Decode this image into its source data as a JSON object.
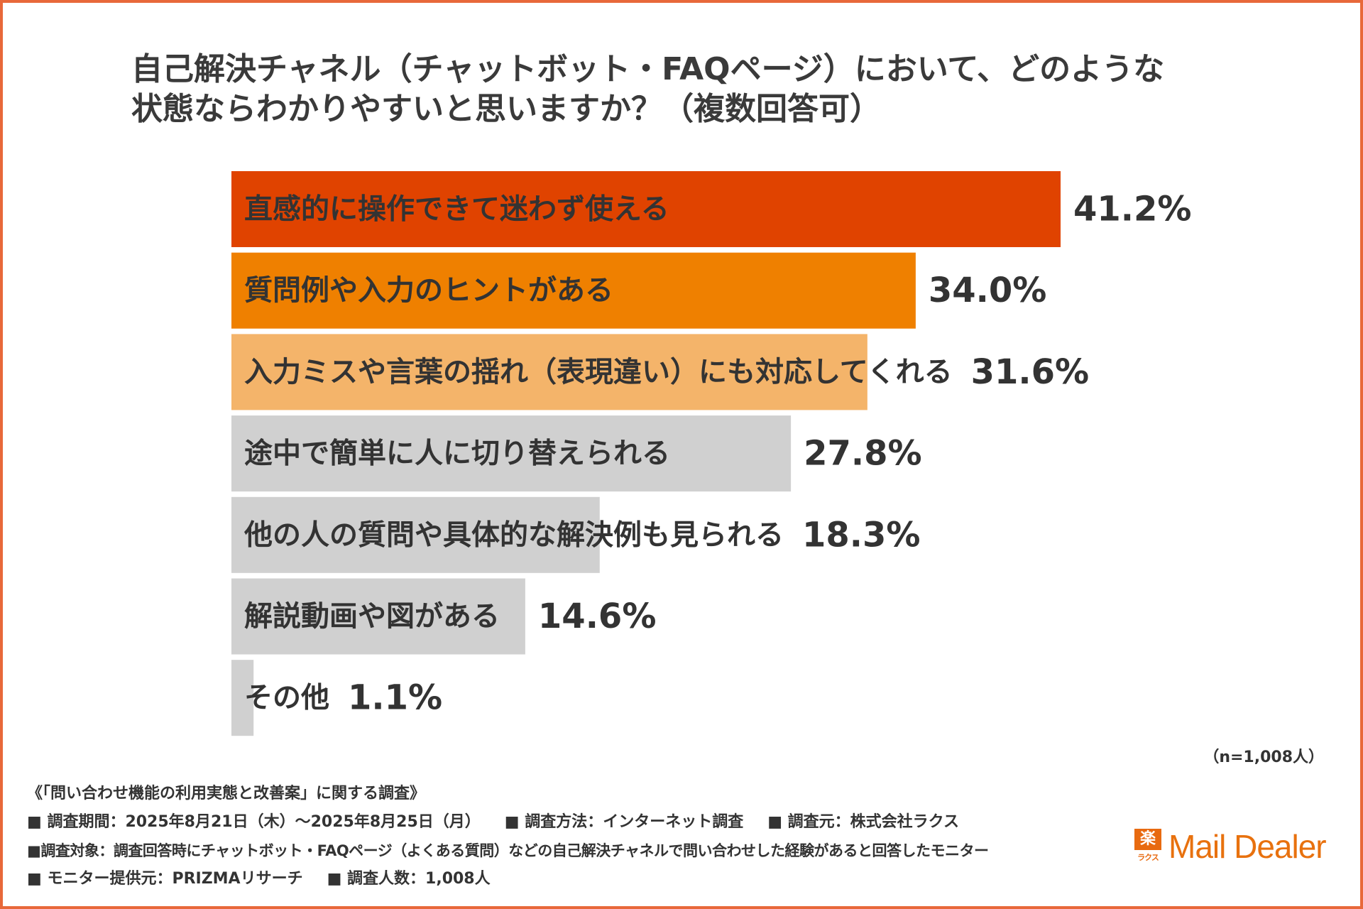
{
  "title": {
    "line1": "自己解決チャネル（チャットボット・FAQページ）において、どのような",
    "line2": "状態ならわかりやすいと思いますか？（複数回答可）"
  },
  "colors": {
    "border": "#e8683a",
    "bar_1": "#e04300",
    "bar_2": "#ef8000",
    "bar_3": "#f4b46a",
    "bar_gray": "#d0d0d0"
  },
  "chart_data": {
    "type": "bar",
    "orientation": "horizontal",
    "title": "自己解決チャネル（チャットボット・FAQページ）において、どのような状態ならわかりやすいと思いますか？（複数回答可）",
    "categories": [
      "直感的に操作できて迷わず使える",
      "質問例や入力のヒントがある",
      "入力ミスや言葉の揺れ（表現違い）にも対応してくれる",
      "途中で簡単に人に切り替えられる",
      "他の人の質問や具体的な解決例も見られる",
      "解説動画や図がある",
      "その他"
    ],
    "values": [
      41.2,
      34.0,
      31.6,
      27.8,
      18.3,
      14.6,
      1.1
    ],
    "value_labels": [
      "41.2%",
      "34.0%",
      "31.6%",
      "27.8%",
      "18.3%",
      "14.6%",
      "1.1%"
    ],
    "unit": "%",
    "xlim": [
      0,
      41.2
    ],
    "grid": false,
    "legend": "none"
  },
  "n_note": "（n=1,008人）",
  "footer": {
    "survey_name": "《「問い合わせ機能の利用実態と改善案」に関する調査》",
    "period": "■ 調査期間：2025年8月21日（木）〜2025年8月25日（月）",
    "method": "■ 調査方法：インターネット調査",
    "organizer": "■ 調査元：株式会社ラクス",
    "target": "■調査対象：調査回答時にチャットボット・FAQページ（よくある質問）などの自己解決チャネルで問い合わせした経験があると回答したモニター",
    "provider": "■ モニター提供元：PRIZMAリサーチ",
    "count": "■ 調査人数：1,008人"
  },
  "logo": {
    "mark_glyph": "楽",
    "mark_sub": "ラクス",
    "text": "Mail Dealer"
  }
}
